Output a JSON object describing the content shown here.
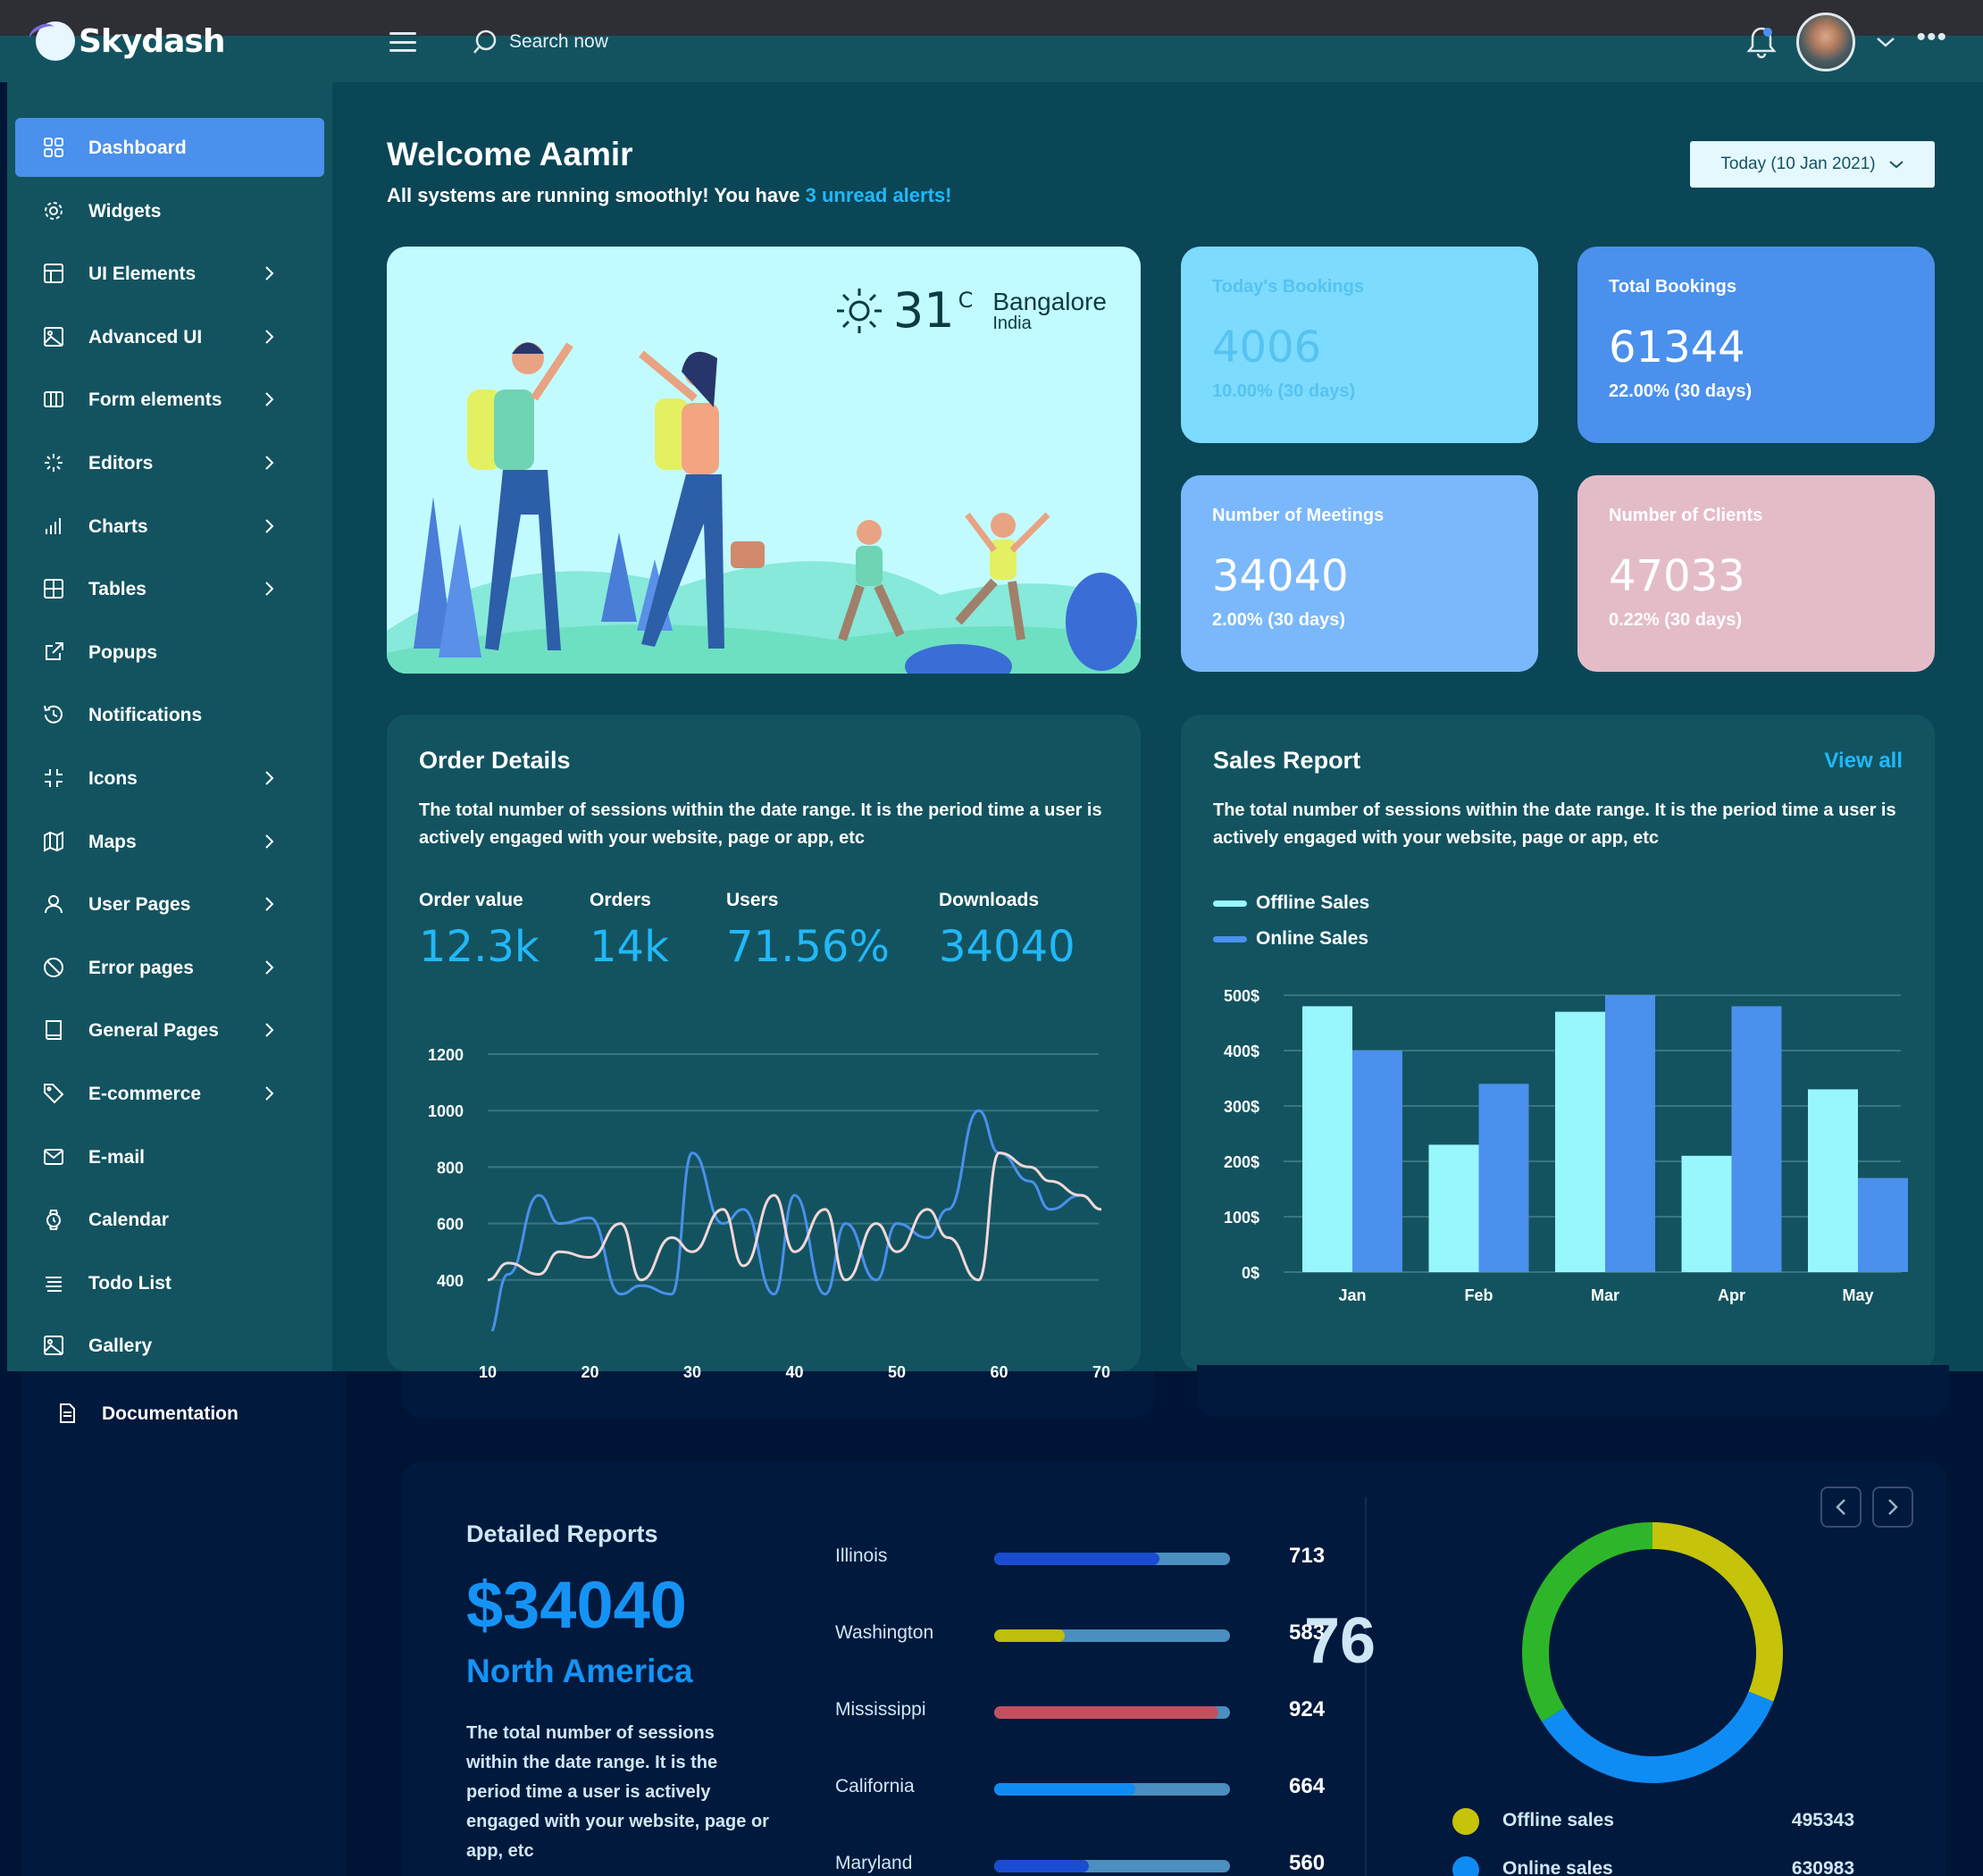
{
  "app": {
    "name": "Skydash"
  },
  "header": {
    "search_placeholder": "Search now"
  },
  "sidebar": {
    "items": [
      {
        "label": "Dashboard",
        "icon": "grid-icon",
        "active": true,
        "has_submenu": false
      },
      {
        "label": "Widgets",
        "icon": "gear-icon",
        "has_submenu": false
      },
      {
        "label": "UI Elements",
        "icon": "layout-icon",
        "has_submenu": true
      },
      {
        "label": "Advanced UI",
        "icon": "image-icon",
        "has_submenu": true
      },
      {
        "label": "Form elements",
        "icon": "columns-icon",
        "has_submenu": true
      },
      {
        "label": "Editors",
        "icon": "loader-icon",
        "has_submenu": true
      },
      {
        "label": "Charts",
        "icon": "bar-chart-icon",
        "has_submenu": true
      },
      {
        "label": "Tables",
        "icon": "table-icon",
        "has_submenu": true
      },
      {
        "label": "Popups",
        "icon": "external-link-icon",
        "has_submenu": false
      },
      {
        "label": "Notifications",
        "icon": "history-icon",
        "has_submenu": false
      },
      {
        "label": "Icons",
        "icon": "minimize-icon",
        "has_submenu": true
      },
      {
        "label": "Maps",
        "icon": "map-icon",
        "has_submenu": true
      },
      {
        "label": "User Pages",
        "icon": "user-icon",
        "has_submenu": true
      },
      {
        "label": "Error pages",
        "icon": "slash-icon",
        "has_submenu": true
      },
      {
        "label": "General Pages",
        "icon": "book-icon",
        "has_submenu": true
      },
      {
        "label": "E-commerce",
        "icon": "tag-icon",
        "has_submenu": true
      },
      {
        "label": "E-mail",
        "icon": "mail-icon",
        "has_submenu": false
      },
      {
        "label": "Calendar",
        "icon": "watch-icon",
        "has_submenu": false
      },
      {
        "label": "Todo List",
        "icon": "list-icon",
        "has_submenu": false
      },
      {
        "label": "Gallery",
        "icon": "image-icon",
        "has_submenu": false
      },
      {
        "label": "Documentation",
        "icon": "document-icon",
        "has_submenu": false
      }
    ]
  },
  "welcome": {
    "title": "Welcome Aamir",
    "subtitle": "All systems are running smoothly! You have ",
    "alerts_link": "3 unread alerts!",
    "date_button": "Today (10 Jan 2021)"
  },
  "weather": {
    "temp": "31",
    "unit": "C",
    "city": "Bangalore",
    "country": "India"
  },
  "stats": [
    {
      "label": "Today's Bookings",
      "value": "4006",
      "change": "10.00% (30 days)",
      "color": "#7ddbfd",
      "text_color": "#56c3f0"
    },
    {
      "label": "Total Bookings",
      "value": "61344",
      "change": "22.00% (30 days)",
      "color": "#4a90ec",
      "text_color": "#ffffff"
    },
    {
      "label": "Number of Meetings",
      "value": "34040",
      "change": "2.00% (30 days)",
      "color": "#7ab8fb",
      "text_color": "#ffffff"
    },
    {
      "label": "Number of Clients",
      "value": "47033",
      "change": "0.22% (30 days)",
      "color": "#e4bcc7",
      "text_color": "#ffffff"
    }
  ],
  "order_details": {
    "title": "Order Details",
    "description": "The total number of sessions within the date range. It is the period time a user is actively engaged with your website, page or app, etc",
    "metrics": [
      {
        "label": "Order value",
        "value": "12.3k"
      },
      {
        "label": "Orders",
        "value": "14k"
      },
      {
        "label": "Users",
        "value": "71.56%"
      },
      {
        "label": "Downloads",
        "value": "34040"
      }
    ]
  },
  "sales_report": {
    "title": "Sales Report",
    "view_all": "View all",
    "description": "The total number of sessions within the date range. It is the period time a user is actively engaged with your website, page or app, etc"
  },
  "detailed_reports": {
    "title": "Detailed Reports",
    "amount": "$34040",
    "region": "North America",
    "description": "The total number of sessions within the date range. It is the period time a user is actively engaged with your website, page or app, etc",
    "states": [
      {
        "name": "Illinois",
        "value": "713",
        "fill": 0.7,
        "color": "#1b4bd1"
      },
      {
        "name": "Washington",
        "value": "583",
        "fill": 0.3,
        "color": "#bfbe0a"
      },
      {
        "name": "Mississippi",
        "value": "924",
        "fill": 0.95,
        "color": "#c2505f"
      },
      {
        "name": "California",
        "value": "664",
        "fill": 0.6,
        "color": "#0f8cf3"
      },
      {
        "name": "Maryland",
        "value": "560",
        "fill": 0.4,
        "color": "#1b4bd1"
      }
    ],
    "gauge_value": "76",
    "legend": [
      {
        "name": "Offline sales",
        "value": "495343",
        "color": "#c5c30a"
      },
      {
        "name": "Online sales",
        "value": "630983",
        "color": "#0f8cf3"
      }
    ]
  },
  "chart_data": [
    {
      "type": "line",
      "title": "Order Details",
      "x": [
        10,
        12,
        15,
        17,
        20,
        23,
        25,
        28,
        30,
        33,
        35,
        38,
        40,
        43,
        45,
        48,
        50,
        53,
        55,
        58,
        60,
        63,
        65,
        68,
        70
      ],
      "series": [
        {
          "name": "Series 1",
          "color": "#4a90ec",
          "values": [
            200,
            420,
            700,
            600,
            620,
            350,
            380,
            350,
            850,
            600,
            650,
            350,
            700,
            350,
            600,
            400,
            600,
            550,
            650,
            1000,
            850,
            750,
            650,
            700,
            650
          ]
        },
        {
          "name": "Series 2",
          "color": "#f2d7d8",
          "values": [
            400,
            460,
            420,
            500,
            480,
            600,
            400,
            550,
            500,
            650,
            450,
            700,
            500,
            650,
            400,
            600,
            500,
            650,
            550,
            400,
            850,
            800,
            750,
            700,
            650
          ]
        }
      ],
      "ylim": [
        200,
        1200
      ],
      "yticks": [
        200,
        400,
        600,
        800,
        1000,
        1200
      ],
      "xticks": [
        10,
        20,
        30,
        40,
        50,
        60,
        70
      ]
    },
    {
      "type": "bar",
      "title": "Sales Report",
      "categories": [
        "Jan",
        "Feb",
        "Mar",
        "Apr",
        "May"
      ],
      "series": [
        {
          "name": "Offline Sales",
          "color": "#98f6fd",
          "values": [
            480,
            230,
            470,
            210,
            330
          ]
        },
        {
          "name": "Online Sales",
          "color": "#4a90ec",
          "values": [
            400,
            340,
            500,
            480,
            170
          ]
        }
      ],
      "ylim": [
        0,
        500
      ],
      "yticks": [
        "0$",
        "100$",
        "200$",
        "300$",
        "400$",
        "500$"
      ]
    },
    {
      "type": "pie",
      "title": "Detailed Reports",
      "series": [
        {
          "name": "Offline sales",
          "value": 495343,
          "color": "#c5c30a"
        },
        {
          "name": "Online sales",
          "value": 630983,
          "color": "#0f8cf3"
        }
      ],
      "extra_segment_color": "#2db629",
      "center_label": "76"
    }
  ]
}
